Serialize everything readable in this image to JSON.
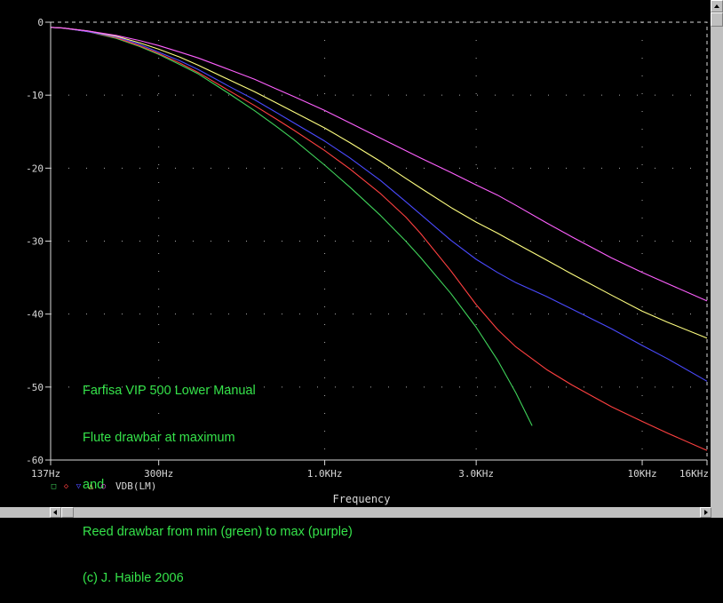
{
  "chart_data": {
    "type": "line",
    "xscale": "log",
    "xlim": [
      137,
      16000
    ],
    "ylim": [
      -60,
      0
    ],
    "xlabel": "Frequency",
    "x_tick_values": [
      137,
      300,
      1000,
      3000,
      10000,
      16000
    ],
    "x_tick_labels": [
      "137Hz",
      "300Hz",
      "1.0KHz",
      "3.0KHz",
      "10KHz",
      "16KHz"
    ],
    "y_tick_values": [
      0,
      -10,
      -20,
      -30,
      -40,
      -50,
      -60
    ],
    "y_tick_labels": [
      "0",
      "-10",
      "-20",
      "-30",
      "-40",
      "-50",
      "-60"
    ],
    "grid": "dotted",
    "background": "#000000",
    "axis_color": "#d8d8d8",
    "legend": {
      "markers": [
        {
          "symbol": "□",
          "color": "#3fd35a"
        },
        {
          "symbol": "◇",
          "color": "#ff4040"
        },
        {
          "symbol": "▽",
          "color": "#4a4aff"
        },
        {
          "symbol": "△",
          "color": "#ffff80"
        },
        {
          "symbol": "○",
          "color": "#ff60ff"
        }
      ],
      "label": "VDB(LM)"
    },
    "annotation": [
      "Farfisa VIP 500 Lower Manual",
      "Flute drawbar at maximum",
      "and",
      "Reed drawbar from min (green) to max (purple)",
      "(c) J. Haible 2006"
    ],
    "annotation_color": "#35e34a",
    "series": [
      {
        "color": "#3fd35a",
        "x": [
          137,
          150,
          180,
          220,
          260,
          300,
          350,
          400,
          500,
          600,
          700,
          800,
          1000,
          1200,
          1500,
          1800,
          2000,
          2500,
          3000,
          3500,
          4000,
          4500
        ],
        "y": [
          -0.7,
          -0.8,
          -1.3,
          -2.2,
          -3.3,
          -4.4,
          -5.8,
          -7.1,
          -9.8,
          -12.1,
          -14.2,
          -16.1,
          -19.6,
          -22.6,
          -26.5,
          -30.0,
          -32.2,
          -37.2,
          -41.8,
          -46.3,
          -50.8,
          -55.3
        ]
      },
      {
        "color": "#ff4040",
        "x": [
          137,
          150,
          180,
          220,
          260,
          300,
          350,
          400,
          500,
          600,
          700,
          800,
          1000,
          1200,
          1500,
          1800,
          2000,
          2500,
          3000,
          3500,
          4000,
          5000,
          6000,
          8000,
          10000,
          12000,
          16000
        ],
        "y": [
          -0.7,
          -0.8,
          -1.3,
          -2.1,
          -3.2,
          -4.3,
          -5.6,
          -6.9,
          -9.4,
          -11.4,
          -13.2,
          -14.8,
          -17.6,
          -20.1,
          -23.5,
          -26.7,
          -28.9,
          -34.1,
          -38.7,
          -42.1,
          -44.5,
          -47.6,
          -49.7,
          -52.7,
          -54.7,
          -56.3,
          -58.7
        ]
      },
      {
        "color": "#4a4aff",
        "x": [
          137,
          150,
          180,
          220,
          260,
          300,
          350,
          400,
          500,
          600,
          700,
          800,
          1000,
          1200,
          1500,
          1800,
          2000,
          2500,
          3000,
          3500,
          4000,
          5000,
          6000,
          8000,
          10000,
          12000,
          16000
        ],
        "y": [
          -0.7,
          -0.8,
          -1.3,
          -2.0,
          -3.0,
          -4.1,
          -5.3,
          -6.5,
          -8.8,
          -10.6,
          -12.3,
          -13.8,
          -16.3,
          -18.6,
          -21.7,
          -24.6,
          -26.3,
          -29.9,
          -32.5,
          -34.3,
          -35.7,
          -37.6,
          -39.3,
          -42.0,
          -44.3,
          -46.1,
          -49.2
        ]
      },
      {
        "color": "#ffff80",
        "x": [
          137,
          150,
          180,
          220,
          260,
          300,
          350,
          400,
          500,
          600,
          700,
          800,
          1000,
          1200,
          1500,
          1800,
          2000,
          2500,
          3000,
          3500,
          4000,
          5000,
          6000,
          8000,
          10000,
          12000,
          16000
        ],
        "y": [
          -0.7,
          -0.8,
          -1.2,
          -1.9,
          -2.8,
          -3.7,
          -4.8,
          -5.9,
          -7.9,
          -9.5,
          -11.0,
          -12.3,
          -14.5,
          -16.5,
          -19.1,
          -21.4,
          -22.7,
          -25.4,
          -27.4,
          -28.9,
          -30.3,
          -32.6,
          -34.5,
          -37.4,
          -39.6,
          -41.1,
          -43.3
        ]
      },
      {
        "color": "#ff60ff",
        "x": [
          137,
          150,
          180,
          220,
          260,
          300,
          350,
          400,
          500,
          600,
          700,
          800,
          1000,
          1200,
          1500,
          1800,
          2000,
          2500,
          3000,
          3500,
          4000,
          5000,
          6000,
          8000,
          10000,
          12000,
          16000
        ],
        "y": [
          -0.7,
          -0.8,
          -1.2,
          -1.8,
          -2.5,
          -3.2,
          -4.1,
          -4.9,
          -6.5,
          -7.8,
          -9.1,
          -10.2,
          -12.1,
          -13.8,
          -15.9,
          -17.6,
          -18.6,
          -20.6,
          -22.3,
          -23.7,
          -25.1,
          -27.5,
          -29.4,
          -32.3,
          -34.3,
          -35.8,
          -38.2
        ]
      }
    ]
  }
}
